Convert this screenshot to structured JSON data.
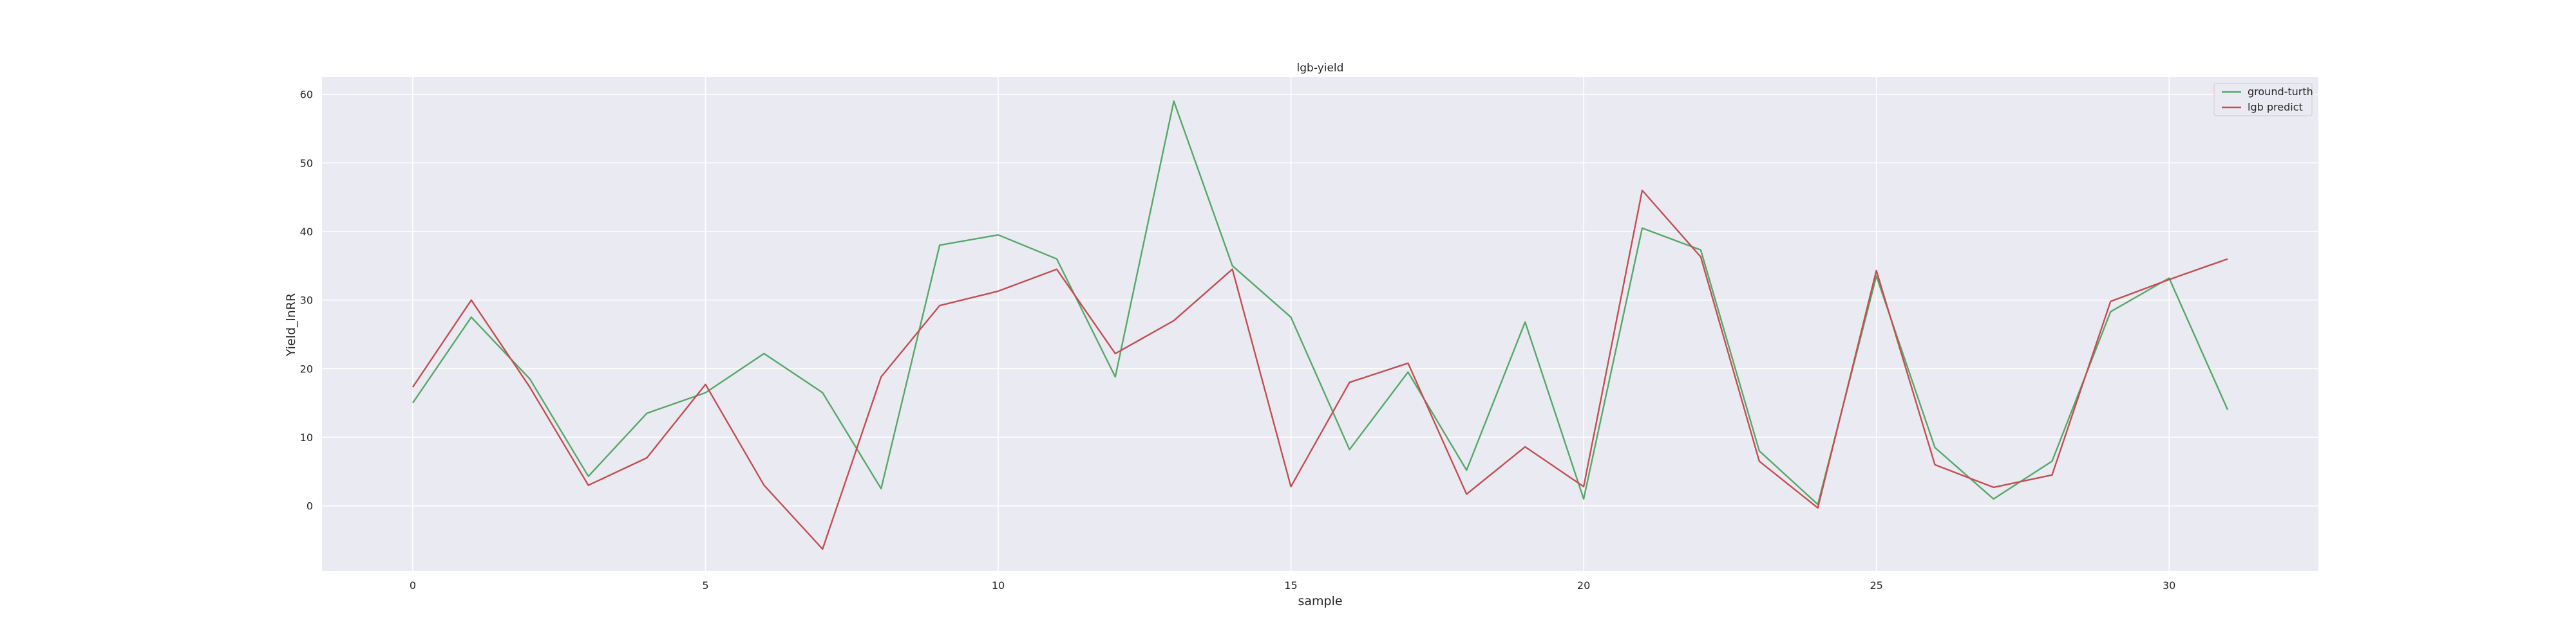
{
  "chart_data": {
    "type": "line",
    "title": "lgb-yield",
    "xlabel": "sample",
    "ylabel": "Yield_lnRR",
    "xlim": [
      -1.55,
      32.55
    ],
    "ylim": [
      -9.5,
      62.5
    ],
    "xticks": [
      0,
      5,
      10,
      15,
      20,
      25,
      30
    ],
    "yticks": [
      0,
      10,
      20,
      30,
      40,
      50,
      60
    ],
    "grid": true,
    "legend_position": "top-right",
    "x": [
      0,
      1,
      2,
      3,
      4,
      5,
      6,
      7,
      8,
      9,
      10,
      11,
      12,
      13,
      14,
      15,
      16,
      17,
      18,
      19,
      20,
      21,
      22,
      23,
      24,
      25,
      26,
      27,
      28,
      29,
      30,
      31
    ],
    "series": [
      {
        "name": "ground-turth",
        "color": "#55a868",
        "values": [
          15,
          27.5,
          18.5,
          4.3,
          13.5,
          16.5,
          22.2,
          16.5,
          2.5,
          38,
          39.5,
          36,
          18.8,
          59,
          35,
          27.5,
          8.2,
          19.5,
          5.2,
          26.8,
          1,
          40.5,
          37.3,
          8,
          0.2,
          33.5,
          8.5,
          1,
          6.5,
          28.3,
          33.2,
          14
        ]
      },
      {
        "name": "lgb predict",
        "color": "#c44e52",
        "values": [
          17.3,
          30,
          17.3,
          3,
          7,
          17.7,
          3,
          -6.3,
          18.8,
          29.2,
          31.3,
          34.5,
          22.2,
          27,
          34.5,
          2.8,
          18,
          20.8,
          1.7,
          8.6,
          2.8,
          46,
          36.3,
          6.5,
          -0.3,
          34.3,
          6,
          2.7,
          4.5,
          29.8,
          33,
          36
        ]
      }
    ]
  }
}
